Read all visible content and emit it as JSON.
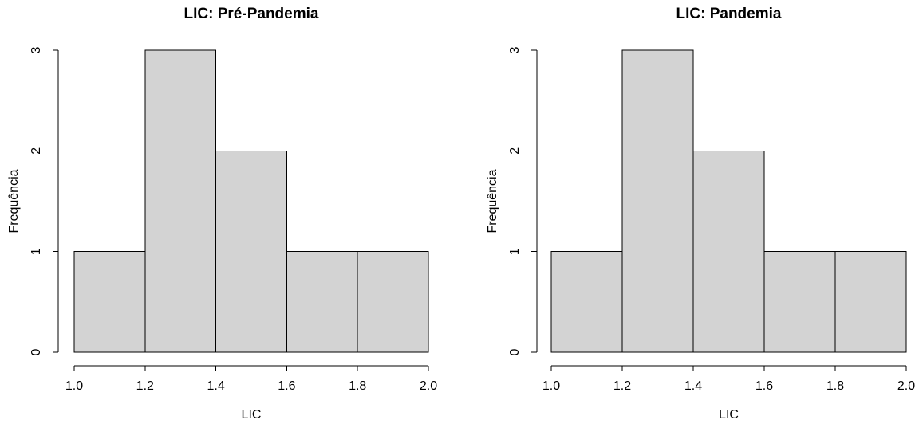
{
  "figure": {
    "background": "#ffffff",
    "panel_count": 2
  },
  "chart_data": [
    {
      "type": "bar",
      "subtype": "histogram",
      "title": "LIC: Pré-Pandemia",
      "xlabel": "LIC",
      "ylabel": "Frequência",
      "bin_edges": [
        1.0,
        1.2,
        1.4,
        1.6,
        1.8,
        2.0
      ],
      "values": [
        1,
        3,
        2,
        1,
        1
      ],
      "x_ticks": [
        "1.0",
        "1.2",
        "1.4",
        "1.6",
        "1.8",
        "2.0"
      ],
      "y_ticks": [
        "0",
        "1",
        "2",
        "3"
      ],
      "xlim": [
        1.0,
        2.0
      ],
      "ylim": [
        0,
        3
      ],
      "grid": false,
      "legend": "none",
      "bar_fill": "#d3d3d3",
      "bar_stroke": "#000000",
      "axis_color": "#000000",
      "text_color": "#000000"
    },
    {
      "type": "bar",
      "subtype": "histogram",
      "title": "LIC: Pandemia",
      "xlabel": "LIC",
      "ylabel": "Frequência",
      "bin_edges": [
        1.0,
        1.2,
        1.4,
        1.6,
        1.8,
        2.0
      ],
      "values": [
        1,
        3,
        2,
        1,
        1
      ],
      "x_ticks": [
        "1.0",
        "1.2",
        "1.4",
        "1.6",
        "1.8",
        "2.0"
      ],
      "y_ticks": [
        "0",
        "1",
        "2",
        "3"
      ],
      "xlim": [
        1.0,
        2.0
      ],
      "ylim": [
        0,
        3
      ],
      "grid": false,
      "legend": "none",
      "bar_fill": "#d3d3d3",
      "bar_stroke": "#000000",
      "axis_color": "#000000",
      "text_color": "#000000"
    }
  ]
}
